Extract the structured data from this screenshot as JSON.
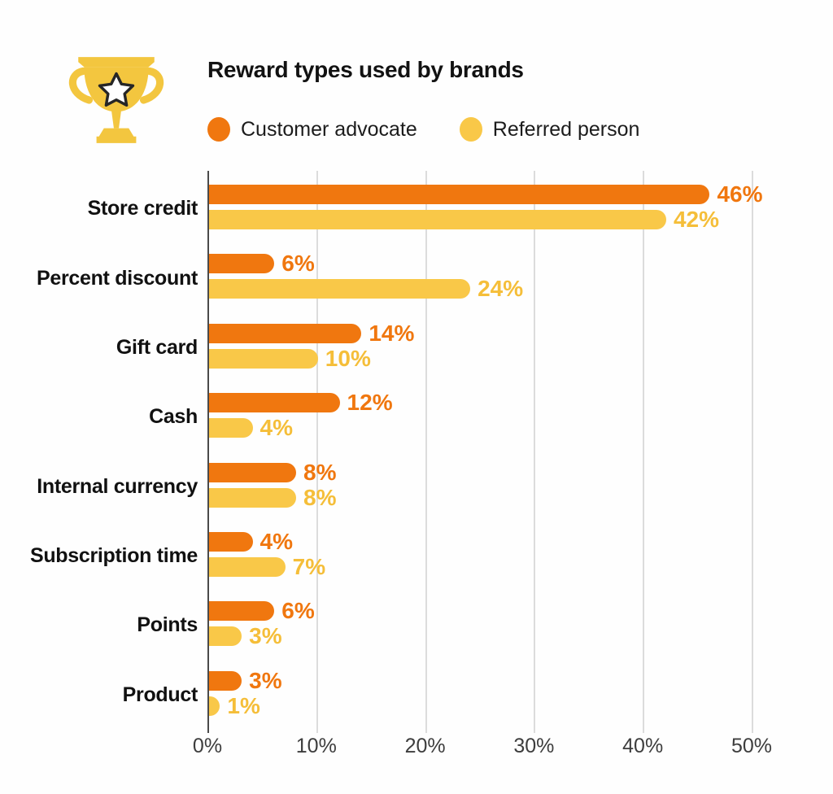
{
  "header": {
    "title": "Reward types used by brands",
    "icon": "trophy-icon",
    "legend": [
      {
        "label": "Customer advocate",
        "color": "#F0770F"
      },
      {
        "label": "Referred person",
        "color": "#F9C848"
      }
    ]
  },
  "chart_data": {
    "type": "bar",
    "orientation": "horizontal",
    "title": "Reward types used by brands",
    "categories": [
      "Store credit",
      "Percent discount",
      "Gift card",
      "Cash",
      "Internal currency",
      "Subscription time",
      "Points",
      "Product"
    ],
    "series": [
      {
        "name": "Customer advocate",
        "color": "#F0770F",
        "label_color": "#F0770F",
        "values": [
          46,
          6,
          14,
          12,
          8,
          4,
          6,
          3
        ]
      },
      {
        "name": "Referred person",
        "color": "#F9C848",
        "label_color": "#F5BE39",
        "values": [
          42,
          24,
          10,
          4,
          8,
          7,
          3,
          1
        ]
      }
    ],
    "value_suffix": "%",
    "xlabel": "",
    "ylabel": "",
    "xlim": [
      0,
      50
    ],
    "x_ticks": [
      {
        "value": 0,
        "label": "0%"
      },
      {
        "value": 10,
        "label": "10%"
      },
      {
        "value": 20,
        "label": "20%"
      },
      {
        "value": 30,
        "label": "30%"
      },
      {
        "value": 40,
        "label": "40%"
      },
      {
        "value": 50,
        "label": "50%"
      }
    ],
    "grid": true,
    "legend_position": "top"
  },
  "style": {
    "grid_color": "#dcdcdc",
    "axis_color": "#4a4a4a",
    "tick_label_color": "#3d3d3d",
    "title_color": "#121212",
    "category_label_color": "#111111",
    "trophy_color": "#F3C63F",
    "background": "#fefefe"
  }
}
